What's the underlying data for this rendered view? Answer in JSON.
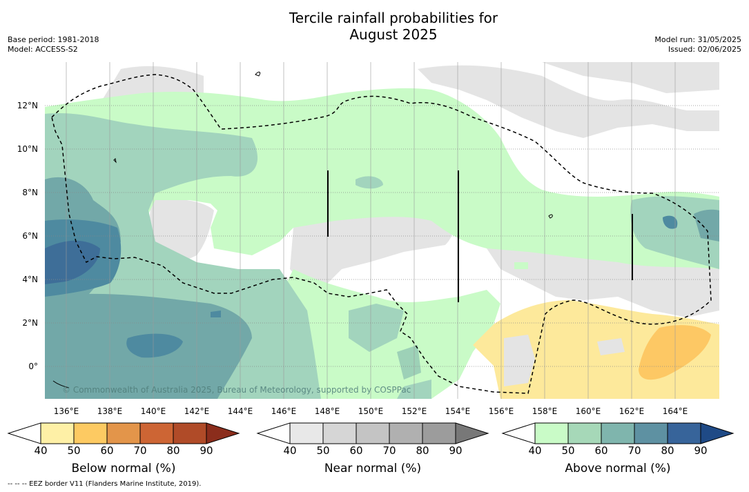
{
  "title": {
    "line1": "Tercile rainfall probabilities for",
    "line2": "August 2025"
  },
  "meta": {
    "base_period": "Base period: 1981-2018",
    "model": "Model: ACCESS-S2",
    "model_run": "Model run: 31/05/2025",
    "issued": "Issued: 02/06/2025"
  },
  "map": {
    "lat_labels": [
      "12°N",
      "10°N",
      "8°N",
      "6°N",
      "4°N",
      "2°N",
      "0°"
    ],
    "lon_labels": [
      "136°E",
      "138°E",
      "140°E",
      "142°E",
      "144°E",
      "146°E",
      "148°E",
      "150°E",
      "152°E",
      "154°E",
      "156°E",
      "158°E",
      "160°E",
      "162°E",
      "164°E"
    ],
    "credit": "© Commonwealth of Australia 2025, Bureau of Meteorology, supported by COSPPac",
    "colors": {
      "near_normal_zone": "#e4e4e4",
      "above_40": "#c9fbc7",
      "above_50": "#a2d4bd",
      "above_60": "#72a8a8",
      "above_70": "#4e8aa0",
      "above_80": "#3e6e98",
      "below_40": "#fde99b",
      "below_50": "#fdc864"
    }
  },
  "colorbars": {
    "below": {
      "title": "Below normal (%)",
      "ticks": [
        "40",
        "50",
        "60",
        "70",
        "80",
        "90"
      ],
      "colors": [
        "#fef0a6",
        "#fdca62",
        "#e3954a",
        "#cd6534",
        "#b04b28",
        "#8b2d1c"
      ]
    },
    "near": {
      "title": "Near normal (%)",
      "ticks": [
        "40",
        "50",
        "60",
        "70",
        "80",
        "90"
      ],
      "colors": [
        "#e8e8e8",
        "#d6d6d6",
        "#c4c4c4",
        "#b0b0b0",
        "#9c9c9c",
        "#787878"
      ]
    },
    "above": {
      "title": "Above normal (%)",
      "ticks": [
        "40",
        "50",
        "60",
        "70",
        "80",
        "90"
      ],
      "colors": [
        "#c9fbc7",
        "#a6d8b8",
        "#7fb5ad",
        "#5e91a2",
        "#37649a",
        "#1f4a86"
      ]
    }
  },
  "footnote": "--  --  -- EEZ border V11 (Flanders Marine Institute, 2019)."
}
